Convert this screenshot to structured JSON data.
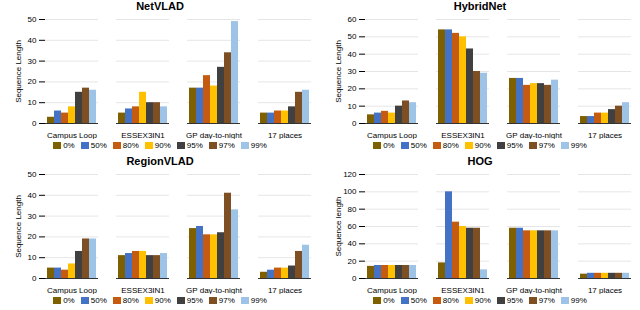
{
  "chart_data": [
    {
      "type": "bar",
      "title": "NetVLAD",
      "ylabel": "Sequence Length",
      "categories": [
        "Campus Loop",
        "ESSEX3IN1",
        "GP day-to-night",
        "17 places"
      ],
      "series": [
        {
          "name": "0%",
          "color": "#7f6000",
          "values": [
            3,
            5,
            17,
            5
          ]
        },
        {
          "name": "50%",
          "color": "#4472c4",
          "values": [
            6,
            7,
            17,
            5
          ]
        },
        {
          "name": "80%",
          "color": "#c55a11",
          "values": [
            5,
            8,
            23,
            6
          ]
        },
        {
          "name": "90%",
          "color": "#ffc000",
          "values": [
            8,
            15,
            18,
            6
          ]
        },
        {
          "name": "95%",
          "color": "#404040",
          "values": [
            15,
            10,
            27,
            8
          ]
        },
        {
          "name": "97%",
          "color": "#7f4f24",
          "values": [
            17,
            10,
            34,
            15
          ]
        },
        {
          "name": "99%",
          "color": "#9dc3e6",
          "values": [
            16,
            8,
            49,
            16
          ]
        }
      ],
      "ylim": [
        0,
        50
      ],
      "yticks": [
        0,
        10,
        20,
        30,
        40,
        50
      ],
      "grid": true,
      "legend": "bottom"
    },
    {
      "type": "bar",
      "title": "HybridNet",
      "ylabel": "Sequence Length",
      "categories": [
        "Campus Loop",
        "ESSEX3IN1",
        "GP day-to-night",
        "17 places"
      ],
      "series": [
        {
          "name": "0%",
          "color": "#7f6000",
          "values": [
            5,
            54,
            26,
            4
          ]
        },
        {
          "name": "50%",
          "color": "#4472c4",
          "values": [
            6,
            54,
            26,
            4
          ]
        },
        {
          "name": "80%",
          "color": "#c55a11",
          "values": [
            7,
            52,
            22,
            6
          ]
        },
        {
          "name": "90%",
          "color": "#ffc000",
          "values": [
            6,
            50,
            23,
            6
          ]
        },
        {
          "name": "95%",
          "color": "#404040",
          "values": [
            10,
            43,
            23,
            8
          ]
        },
        {
          "name": "97%",
          "color": "#7f4f24",
          "values": [
            13,
            30,
            22,
            10
          ]
        },
        {
          "name": "99%",
          "color": "#9dc3e6",
          "values": [
            12,
            29,
            25,
            12
          ]
        }
      ],
      "ylim": [
        0,
        60
      ],
      "yticks": [
        0,
        10,
        20,
        30,
        40,
        50,
        60
      ],
      "grid": true,
      "legend": "bottom"
    },
    {
      "type": "bar",
      "title": "RegionVLAD",
      "ylabel": "Sequence Length",
      "categories": [
        "Campus Loop",
        "ESSEX3IN1",
        "GP day-to-night",
        "17 places"
      ],
      "series": [
        {
          "name": "0%",
          "color": "#7f6000",
          "values": [
            5,
            11,
            24,
            3
          ]
        },
        {
          "name": "50%",
          "color": "#4472c4",
          "values": [
            5,
            12,
            25,
            4
          ]
        },
        {
          "name": "80%",
          "color": "#c55a11",
          "values": [
            4,
            13,
            21,
            5
          ]
        },
        {
          "name": "90%",
          "color": "#ffc000",
          "values": [
            7,
            13,
            21,
            5
          ]
        },
        {
          "name": "95%",
          "color": "#404040",
          "values": [
            13,
            11,
            22,
            6
          ]
        },
        {
          "name": "97%",
          "color": "#7f4f24",
          "values": [
            19,
            11,
            41,
            13
          ]
        },
        {
          "name": "99%",
          "color": "#9dc3e6",
          "values": [
            19,
            12,
            33,
            16
          ]
        }
      ],
      "ylim": [
        0,
        50
      ],
      "yticks": [
        0,
        10,
        20,
        30,
        40,
        50
      ],
      "grid": true,
      "legend": "bottom"
    },
    {
      "type": "bar",
      "title": "HOG",
      "ylabel": "Sequence length",
      "categories": [
        "Campus Loop",
        "ESSEX3IN1",
        "GP day-to-night",
        "17 places"
      ],
      "series": [
        {
          "name": "0%",
          "color": "#7f6000",
          "values": [
            14,
            18,
            58,
            5
          ]
        },
        {
          "name": "50%",
          "color": "#4472c4",
          "values": [
            15,
            100,
            58,
            6
          ]
        },
        {
          "name": "80%",
          "color": "#c55a11",
          "values": [
            15,
            65,
            55,
            6
          ]
        },
        {
          "name": "90%",
          "color": "#ffc000",
          "values": [
            15,
            60,
            55,
            6
          ]
        },
        {
          "name": "95%",
          "color": "#404040",
          "values": [
            15,
            58,
            55,
            6
          ]
        },
        {
          "name": "97%",
          "color": "#7f4f24",
          "values": [
            15,
            58,
            55,
            6
          ]
        },
        {
          "name": "99%",
          "color": "#9dc3e6",
          "values": [
            15,
            10,
            55,
            6
          ]
        }
      ],
      "ylim": [
        0,
        120
      ],
      "yticks": [
        0,
        20,
        40,
        60,
        80,
        100,
        120
      ],
      "grid": true,
      "legend": "bottom"
    }
  ]
}
